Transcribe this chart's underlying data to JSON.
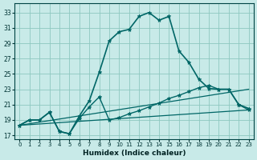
{
  "xlabel": "Humidex (Indice chaleur)",
  "background_color": "#c8eae8",
  "grid_color": "#8ec8c0",
  "line_color": "#006666",
  "xlim": [
    -0.5,
    23.5
  ],
  "ylim": [
    16.5,
    34.2
  ],
  "xticks": [
    0,
    1,
    2,
    3,
    4,
    5,
    6,
    7,
    8,
    9,
    10,
    11,
    12,
    13,
    14,
    15,
    16,
    17,
    18,
    19,
    20,
    21,
    22,
    23
  ],
  "yticks": [
    17,
    19,
    21,
    23,
    25,
    27,
    29,
    31,
    33
  ],
  "curves": [
    {
      "x": [
        0,
        1,
        2,
        3,
        4,
        5,
        6,
        7,
        8,
        9,
        10,
        11,
        12,
        13,
        14,
        15,
        16,
        17,
        18,
        19,
        20,
        21,
        22,
        23
      ],
      "y": [
        18.3,
        19.0,
        19.0,
        20.0,
        17.5,
        17.2,
        19.5,
        21.5,
        25.2,
        29.3,
        30.5,
        30.8,
        32.5,
        33.0,
        32.0,
        32.5,
        28.0,
        26.5,
        24.3,
        23.1,
        23.0,
        23.0,
        21.0,
        20.5
      ],
      "marker": true,
      "lw": 1.2
    },
    {
      "x": [
        0,
        1,
        2,
        3,
        4,
        5,
        6,
        7,
        8,
        9,
        10,
        11,
        12,
        13,
        14,
        15,
        16,
        17,
        18,
        19,
        20,
        21,
        22,
        23
      ],
      "y": [
        18.3,
        19.0,
        19.0,
        20.0,
        17.5,
        17.2,
        19.2,
        20.7,
        22.0,
        19.0,
        19.3,
        19.8,
        20.2,
        20.7,
        21.2,
        21.8,
        22.2,
        22.7,
        23.2,
        23.5,
        23.0,
        23.0,
        21.0,
        20.3
      ],
      "marker": true,
      "lw": 1.0
    },
    {
      "x": [
        0,
        23
      ],
      "y": [
        18.3,
        23.0
      ],
      "marker": false,
      "lw": 0.9
    },
    {
      "x": [
        0,
        23
      ],
      "y": [
        18.3,
        20.3
      ],
      "marker": false,
      "lw": 0.9
    }
  ]
}
